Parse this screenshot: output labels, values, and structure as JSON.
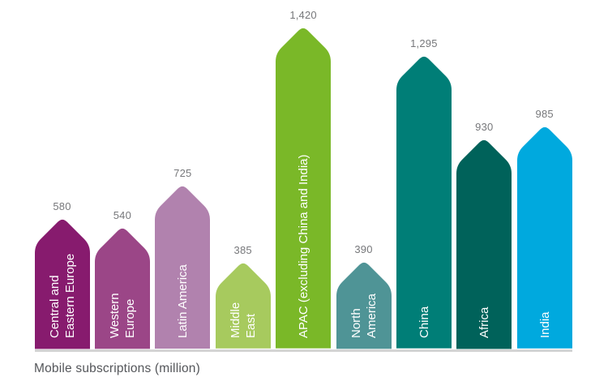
{
  "chart_data": {
    "type": "bar",
    "variant": "arrow-top-bars",
    "title": "Mobile subscriptions (million)",
    "xlabel": "",
    "ylabel": "Mobile subscriptions (million)",
    "ylim": [
      0,
      1500
    ],
    "grid": false,
    "legend_position": "none",
    "axes_shown": false,
    "value_labels_shown": true,
    "value_label_color": "#77787B",
    "bar_text_color": "#FFFFFF",
    "baseline_color": "#D4D4D4",
    "title_color": "#54565A",
    "categories": [
      "Central and Eastern Europe",
      "Western Europe",
      "Latin America",
      "Middle East",
      "APAC (excluding China and India)",
      "North America",
      "China",
      "Africa",
      "India"
    ],
    "label_lines": [
      [
        "Central and",
        "Eastern Europe"
      ],
      [
        "Western",
        "Europe"
      ],
      [
        "Latin America"
      ],
      [
        "Middle",
        "East"
      ],
      [
        "APAC (excluding China and India)"
      ],
      [
        "North",
        "America"
      ],
      [
        "China"
      ],
      [
        "Africa"
      ],
      [
        "India"
      ]
    ],
    "values": [
      580,
      540,
      725,
      385,
      1420,
      390,
      1295,
      930,
      985
    ],
    "display_values": [
      "580",
      "540",
      "725",
      "385",
      "1,420",
      "390",
      "1,295",
      "930",
      "985"
    ],
    "colors": [
      "#871B6E",
      "#9B4687",
      "#B182AE",
      "#A7CA5E",
      "#7AB828",
      "#4F9496",
      "#007E77",
      "#00625A",
      "#00A9DE"
    ]
  }
}
